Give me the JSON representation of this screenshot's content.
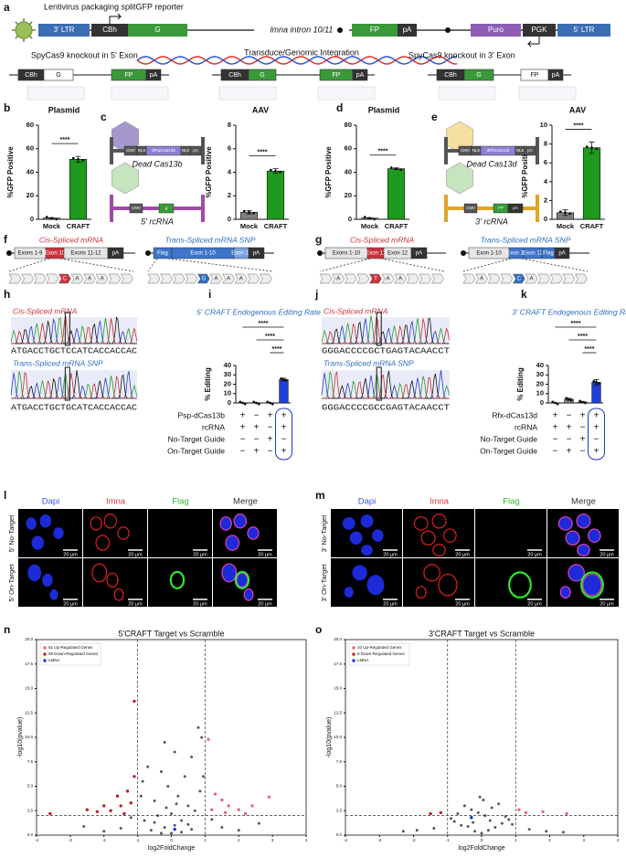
{
  "panel_labels": [
    "a",
    "b",
    "c",
    "d",
    "e",
    "f",
    "g",
    "h",
    "i",
    "j",
    "k",
    "l",
    "m",
    "n",
    "o"
  ],
  "diagram": {
    "a": {
      "title": "Lentivirus packaging splitGFP reporter",
      "elements": [
        "3' LTR",
        "CBh",
        "G",
        "lmna intron 10/11",
        "FP",
        "pA",
        "Puro",
        "PGK",
        "5' LTR"
      ],
      "integration": "Transduce/Genomic Integration",
      "left": "SpyCas9 knockout in 5' Exon",
      "right": "SpyCas9 knockout in 3' Exon",
      "row2": [
        "CBh",
        "G",
        "FP",
        "pA",
        "CBh",
        "G",
        "FP",
        "pA",
        "CBh",
        "G",
        "FP",
        "pA"
      ]
    },
    "c": {
      "protein": "Dead Cas13b",
      "rna": "5' rcRNA",
      "protein_parts": [
        "CMV",
        "NLS",
        "dPspCas13b",
        "NLS",
        "pA"
      ],
      "rna_parts": [
        "CMV",
        "g"
      ]
    },
    "e": {
      "protein": "Dead Cas13d",
      "rna": "3' rcRNA",
      "protein_parts": [
        "CMV",
        "NLS",
        "dRfxCas13d",
        "NLS",
        "pA"
      ],
      "rna_parts": [
        "CMV",
        "FP",
        "pA"
      ]
    },
    "f": {
      "cis": {
        "title": "Cis-Spliced mRNA",
        "parts": [
          "Exons 1-9",
          "Exon 10",
          "Exons 11-12",
          "pA"
        ],
        "bases": [
          null,
          null,
          null,
          null,
          "C",
          "A",
          "A",
          "A",
          null,
          null
        ]
      },
      "trans": {
        "title": "Trans-Spliced mRNA SNP",
        "parts": [
          "Flag",
          "Exon 1-10",
          "Exon 11",
          "pA"
        ],
        "bases": [
          null,
          null,
          null,
          null,
          "G",
          "A",
          "A",
          "A",
          null,
          null
        ]
      }
    },
    "g": {
      "cis": {
        "title": "Cis-Spliced mRNA",
        "parts": [
          "Exons 1-10",
          "Exon 11",
          "Exon 12",
          "pA"
        ],
        "bases": [
          null,
          "A",
          null,
          null,
          "T",
          "A",
          "A",
          null,
          null,
          null
        ]
      },
      "trans": {
        "title": "Trans-Spliced mRNA SNP",
        "parts": [
          "Exon 1-10",
          "Exon 11",
          "Exon 12",
          "Flag",
          "pA"
        ],
        "bases": [
          null,
          "A",
          null,
          null,
          "C",
          "A",
          null,
          null,
          null,
          null
        ]
      }
    },
    "h": {
      "cis_title": "Cis-Spliced mRNA",
      "cis_seq": "ATGACCTGCTCCATCACCACCAC",
      "trans_title": "Trans-Spliced mRNA SNP",
      "trans_seq": "ATGACCTGCTGCATCACCACCAC"
    },
    "j": {
      "cis_title": "Cis-Spliced mRNA",
      "cis_seq": "GGGACCCCGCTGAGTACAACCT",
      "trans_title": "Trans-Spliced mRNA SNP",
      "trans_seq": "GGGACCCCGCCGAGTACAACCT"
    },
    "l": {
      "columns": [
        "Dapi",
        "Imna",
        "Flag",
        "Merge"
      ],
      "rows": [
        "5' No-Target",
        "5' On-Target"
      ],
      "scale": "20 µm"
    },
    "m": {
      "columns": [
        "Dapi",
        "Imna",
        "Flag",
        "Merge"
      ],
      "rows": [
        "3' No-Target",
        "3' On-Target"
      ],
      "scale": "20 µm"
    }
  },
  "chart_data": [
    {
      "type": "bar",
      "title": "Plasmid",
      "ylabel": "%GFP Positive",
      "categories": [
        "Mock",
        "CRAFT"
      ],
      "values": [
        1,
        51
      ],
      "errors": [
        0.3,
        2.5
      ],
      "colors": [
        "#7f7f7f",
        "#1e9a1e"
      ],
      "ylim": [
        0,
        80
      ],
      "yticks": [
        0,
        20,
        40,
        60,
        80
      ],
      "significance": [
        "****"
      ]
    },
    {
      "type": "bar",
      "title": "AAV",
      "ylabel": "%GFP Positive",
      "categories": [
        "Mock",
        "CRAFT"
      ],
      "values": [
        0.6,
        4.1
      ],
      "errors": [
        0.15,
        0.2
      ],
      "colors": [
        "#7f7f7f",
        "#1e9a1e"
      ],
      "ylim": [
        0,
        8
      ],
      "yticks": [
        0,
        2,
        4,
        6,
        8
      ],
      "significance": [
        "****"
      ]
    },
    {
      "type": "bar",
      "title": "Plasmid",
      "ylabel": "%GFP Positive",
      "categories": [
        "Mock",
        "CRAFT"
      ],
      "values": [
        1,
        43
      ],
      "errors": [
        0.3,
        0.7
      ],
      "colors": [
        "#7f7f7f",
        "#1e9a1e"
      ],
      "ylim": [
        0,
        80
      ],
      "yticks": [
        0,
        20,
        40,
        60,
        80
      ],
      "significance": [
        "****"
      ]
    },
    {
      "type": "bar",
      "title": "AAV",
      "ylabel": "%GFP Positive",
      "categories": [
        "Mock",
        "CRAFT"
      ],
      "values": [
        0.7,
        7.6
      ],
      "errors": [
        0.3,
        0.6
      ],
      "colors": [
        "#7f7f7f",
        "#1e9a1e"
      ],
      "ylim": [
        0,
        10
      ],
      "yticks": [
        0,
        2,
        4,
        6,
        8,
        10
      ],
      "significance": [
        "****"
      ]
    },
    {
      "type": "bar",
      "title": "5' CRAFT Endogenous Editing Rate",
      "ylabel": "% Editing",
      "categories": [
        null,
        null,
        null,
        null
      ],
      "values": [
        0,
        0,
        0,
        25
      ],
      "errors": [
        0,
        0,
        0,
        1.5
      ],
      "colors": [
        "#7f7f7f",
        "#7f7f7f",
        "#7f7f7f",
        "#1f3fd6"
      ],
      "ylim": [
        0,
        40
      ],
      "yticks": [
        0,
        10,
        20,
        30,
        40
      ],
      "significance": [
        "****",
        "****",
        "****"
      ],
      "table": [
        {
          "label": "Psp-dCas13b",
          "cells": [
            "+",
            "−",
            "+",
            "+"
          ]
        },
        {
          "label": "rcRNA",
          "cells": [
            "+",
            "+",
            "−",
            "+"
          ]
        },
        {
          "label": "No-Target Guide",
          "cells": [
            "−",
            "−",
            "+",
            "−"
          ]
        },
        {
          "label": "On-Target Guide",
          "cells": [
            "−",
            "+",
            "−",
            "+"
          ]
        }
      ]
    },
    {
      "type": "bar",
      "title": "3' CRAFT Endogenous Editing Rate",
      "ylabel": "% Editing",
      "categories": [
        null,
        null,
        null,
        null
      ],
      "values": [
        0,
        4,
        1,
        22
      ],
      "errors": [
        0,
        1,
        0.4,
        3
      ],
      "colors": [
        "#7f7f7f",
        "#7f7f7f",
        "#7f7f7f",
        "#1f3fd6"
      ],
      "ylim": [
        0,
        40
      ],
      "yticks": [
        0,
        10,
        20,
        30,
        40
      ],
      "significance": [
        "****",
        "****",
        "****"
      ],
      "table": [
        {
          "label": "Rfx-dCas13d",
          "cells": [
            "+",
            "−",
            "+",
            "+"
          ]
        },
        {
          "label": "rcRNA",
          "cells": [
            "+",
            "+",
            "−",
            "+"
          ]
        },
        {
          "label": "No-Target Guide",
          "cells": [
            "−",
            "−",
            "+",
            "−"
          ]
        },
        {
          "label": "On-Target Guide",
          "cells": [
            "−",
            "+",
            "−",
            "+"
          ]
        }
      ]
    },
    {
      "type": "scatter",
      "title": "5'CRAFT Target vs Scramble",
      "xlabel": "log2FoldChange",
      "ylabel": "-log10(pvalue)",
      "xlim": [
        -4,
        4
      ],
      "xticks": [
        -4,
        -3,
        -2,
        -1,
        0,
        1,
        2,
        3,
        4
      ],
      "ylim": [
        0,
        20
      ],
      "yticks": [
        {
          "value": 0,
          "label": "0.0"
        },
        {
          "value": 2.5,
          "label": "2.5"
        },
        {
          "value": 5,
          "label": "5.0"
        },
        {
          "value": 7.5,
          "label": "7.5"
        },
        {
          "value": 10,
          "label": "10.0"
        },
        {
          "value": 12.5,
          "label": "12.5"
        },
        {
          "value": 15,
          "label": "15.0"
        },
        {
          "value": 17.5,
          "label": "17.5"
        },
        {
          "value": 20,
          "label": "20.0"
        }
      ],
      "vlines": [
        -1,
        1
      ],
      "hline": 2,
      "legend": "upper left",
      "series": [
        {
          "color": "#222222",
          "x": [
            0,
            0.1,
            -0.2,
            0.3,
            -0.4,
            0.5,
            -0.5,
            0.2,
            -0.1,
            0.4,
            -0.3,
            0.6,
            0.8,
            0.9,
            -0.7,
            0.7,
            -0.8,
            0.95,
            -0.9,
            0,
            -0.6,
            0.6,
            0.3,
            -0.3,
            1.5,
            -1.5,
            2,
            -2,
            2.6,
            -2.6,
            1.2,
            -1.2,
            0.1,
            -0.2,
            0.5,
            -0.5,
            0.85,
            -0.85,
            0.15,
            -0.15
          ],
          "values": [
            0.2,
            1,
            0.8,
            1.5,
            2,
            3,
            3.5,
            4,
            5,
            6,
            6.5,
            8,
            11,
            10,
            7,
            2.5,
            1.5,
            6,
            4,
            2.2,
            0.5,
            0.6,
            0.3,
            0.2,
            0.8,
            0.7,
            0.5,
            0.4,
            1.2,
            0.9,
            1.6,
            1.8,
            8.5,
            9.5,
            1.1,
            1.3,
            4.5,
            5.5,
            3.2,
            2.8
          ]
        },
        {
          "name": "51 Up-Regulated Genes",
          "color": "#e8677a",
          "x": [
            1.1,
            1.3,
            1.5,
            1.7,
            2,
            2.4,
            2.9,
            1.2,
            1.6,
            2.2
          ],
          "values": [
            9.8,
            4.2,
            3.6,
            3,
            2.6,
            3,
            3.9,
            2.6,
            2.3,
            2.2
          ]
        },
        {
          "name": "99 Down-Regulated Genes",
          "color": "#c0202a",
          "x": [
            -1.1,
            -1.3,
            -1.6,
            -2,
            -2.5,
            -3.6,
            -1.2,
            -1.5,
            -1.8,
            -1.1,
            -2.2,
            -1.4
          ],
          "values": [
            13.7,
            4.5,
            4,
            3,
            2.6,
            2.2,
            3.3,
            3,
            2.5,
            6,
            2.4,
            2.2
          ]
        },
        {
          "name": "LMNA",
          "color": "#1f2fd6",
          "x": [
            0.1
          ],
          "values": [
            0.6
          ]
        }
      ]
    },
    {
      "type": "scatter",
      "title": "3'CRAFT Target vs Scramble",
      "xlabel": "log2FoldChange",
      "ylabel": "-log10(pvalue)",
      "xlim": [
        -4,
        4
      ],
      "xticks": [
        -4,
        -3,
        -2,
        -1,
        0,
        1,
        2,
        3,
        4
      ],
      "ylim": [
        0,
        20
      ],
      "yticks": [
        {
          "value": 0,
          "label": "0.0"
        },
        {
          "value": 2.5,
          "label": "2.5"
        },
        {
          "value": 5,
          "label": "5.0"
        },
        {
          "value": 7.5,
          "label": "7.5"
        },
        {
          "value": 10,
          "label": "10.0"
        },
        {
          "value": 12.5,
          "label": "12.5"
        },
        {
          "value": 15,
          "label": "15.0"
        },
        {
          "value": 17.5,
          "label": "17.5"
        },
        {
          "value": 20,
          "label": "20.0"
        }
      ],
      "vlines": [
        -1,
        1
      ],
      "hline": 2,
      "legend": "upper left",
      "series": [
        {
          "color": "#222222",
          "x": [
            0,
            0.2,
            -0.2,
            0.4,
            -0.4,
            0.6,
            -0.6,
            0.8,
            -0.8,
            0.1,
            -0.1,
            0.3,
            -0.3,
            0.5,
            -0.5,
            0.7,
            -0.7,
            0.9,
            -0.9,
            1.4,
            -1.4,
            1.9,
            -1.9,
            2.4,
            -2.3,
            0.05,
            -0.05,
            0.25,
            -0.25
          ],
          "values": [
            0.2,
            0.5,
            0.4,
            0.8,
            0.9,
            1.2,
            1,
            1.6,
            1.4,
            2,
            2.3,
            2.8,
            2.6,
            3.2,
            3,
            1.9,
            2.2,
            1.1,
            1.7,
            0.6,
            0.7,
            0.4,
            0.5,
            0.3,
            0.4,
            3.6,
            3.9,
            1.5,
            1.3
          ]
        },
        {
          "name": "10 Up-Regulated Genes",
          "color": "#e8677a",
          "x": [
            1.1,
            1.3,
            1.8,
            2.5
          ],
          "values": [
            2.6,
            2.3,
            2.4,
            2.2
          ]
        },
        {
          "name": "8 Down-Regulated Genes",
          "color": "#c0202a",
          "x": [
            -1.2,
            -1.5
          ],
          "values": [
            2.3,
            2.2
          ]
        },
        {
          "name": "LMNA",
          "color": "#1f2fd6",
          "x": [
            -0.3
          ],
          "values": [
            1.8
          ]
        }
      ]
    }
  ]
}
